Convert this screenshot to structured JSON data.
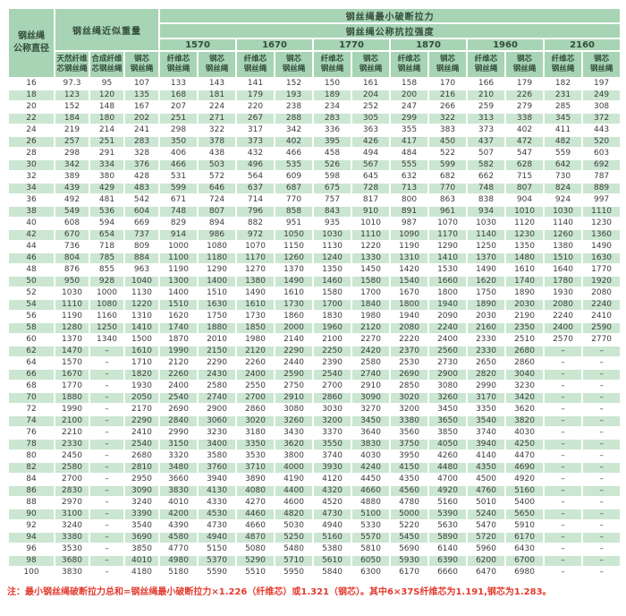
{
  "colors": {
    "header_bg": "#a7d4b4",
    "stripe_bg": "#cbe6d1",
    "note_red": "#e23b2e"
  },
  "table": {
    "header": {
      "diameter_lines": [
        "钢丝绳",
        "公称直径"
      ],
      "weight_group": "钢丝绳近似重量",
      "breaking_force": "钢丝绳最小破断拉力",
      "tensile_strength": "钢丝绳公称抗拉强度",
      "grades": [
        "1570",
        "1670",
        "1770",
        "1870",
        "1960",
        "2160"
      ],
      "weight_subheaders": [
        [
          "天然纤维",
          "芯钢丝绳"
        ],
        [
          "合成纤维",
          "芯钢丝绳"
        ],
        [
          "钢芯",
          "钢丝绳"
        ]
      ],
      "fiber_core_lines": [
        "纤维芯",
        "钢丝绳"
      ],
      "steel_core_lines": [
        "钢芯",
        "钢丝绳"
      ]
    },
    "rows": [
      [
        "16",
        "97.3",
        "95",
        "107",
        "133",
        "143",
        "141",
        "152",
        "150",
        "161",
        "158",
        "170",
        "166",
        "179",
        "182",
        "197"
      ],
      [
        "18",
        "123",
        "120",
        "135",
        "168",
        "181",
        "179",
        "193",
        "189",
        "204",
        "200",
        "216",
        "210",
        "226",
        "231",
        "249"
      ],
      [
        "20",
        "152",
        "148",
        "167",
        "207",
        "224",
        "220",
        "238",
        "234",
        "252",
        "247",
        "266",
        "259",
        "279",
        "285",
        "308"
      ],
      [
        "22",
        "184",
        "180",
        "202",
        "251",
        "271",
        "267",
        "288",
        "283",
        "305",
        "299",
        "322",
        "313",
        "338",
        "345",
        "372"
      ],
      [
        "24",
        "219",
        "214",
        "241",
        "298",
        "322",
        "317",
        "342",
        "336",
        "363",
        "355",
        "383",
        "373",
        "402",
        "411",
        "443"
      ],
      [
        "26",
        "257",
        "251",
        "283",
        "350",
        "378",
        "373",
        "402",
        "395",
        "426",
        "417",
        "450",
        "437",
        "472",
        "482",
        "520"
      ],
      [
        "28",
        "298",
        "291",
        "328",
        "406",
        "438",
        "432",
        "466",
        "458",
        "494",
        "484",
        "522",
        "507",
        "547",
        "559",
        "603"
      ],
      [
        "30",
        "342",
        "334",
        "376",
        "466",
        "503",
        "496",
        "535",
        "526",
        "567",
        "555",
        "599",
        "582",
        "628",
        "642",
        "692"
      ],
      [
        "32",
        "389",
        "380",
        "428",
        "531",
        "572",
        "564",
        "609",
        "598",
        "645",
        "632",
        "682",
        "662",
        "715",
        "730",
        "787"
      ],
      [
        "34",
        "439",
        "429",
        "483",
        "599",
        "646",
        "637",
        "687",
        "675",
        "728",
        "713",
        "770",
        "748",
        "807",
        "824",
        "889"
      ],
      [
        "36",
        "492",
        "481",
        "542",
        "671",
        "724",
        "714",
        "770",
        "757",
        "817",
        "800",
        "863",
        "838",
        "904",
        "924",
        "997"
      ],
      [
        "38",
        "549",
        "536",
        "604",
        "748",
        "807",
        "796",
        "858",
        "843",
        "910",
        "891",
        "961",
        "934",
        "1010",
        "1030",
        "1110"
      ],
      [
        "40",
        "608",
        "594",
        "669",
        "829",
        "894",
        "882",
        "951",
        "935",
        "1010",
        "987",
        "1070",
        "1030",
        "1120",
        "1140",
        "1230"
      ],
      [
        "42",
        "670",
        "654",
        "737",
        "914",
        "986",
        "972",
        "1050",
        "1030",
        "1110",
        "1090",
        "1170",
        "1140",
        "1230",
        "1260",
        "1360"
      ],
      [
        "44",
        "736",
        "718",
        "809",
        "1000",
        "1080",
        "1070",
        "1150",
        "1130",
        "1220",
        "1190",
        "1290",
        "1250",
        "1350",
        "1380",
        "1490"
      ],
      [
        "46",
        "804",
        "785",
        "884",
        "1100",
        "1180",
        "1170",
        "1260",
        "1240",
        "1330",
        "1310",
        "1410",
        "1370",
        "1480",
        "1510",
        "1630"
      ],
      [
        "48",
        "876",
        "855",
        "963",
        "1190",
        "1290",
        "1270",
        "1370",
        "1350",
        "1450",
        "1420",
        "1530",
        "1490",
        "1610",
        "1640",
        "1770"
      ],
      [
        "50",
        "950",
        "928",
        "1040",
        "1300",
        "1400",
        "1380",
        "1490",
        "1460",
        "1580",
        "1540",
        "1660",
        "1620",
        "1740",
        "1780",
        "1920"
      ],
      [
        "52",
        "1030",
        "1000",
        "1130",
        "1400",
        "1510",
        "1490",
        "1610",
        "1580",
        "1700",
        "1670",
        "1800",
        "1750",
        "1890",
        "1930",
        "2080"
      ],
      [
        "54",
        "1110",
        "1080",
        "1220",
        "1510",
        "1630",
        "1610",
        "1730",
        "1700",
        "1840",
        "1800",
        "1940",
        "1890",
        "2030",
        "2080",
        "2240"
      ],
      [
        "56",
        "1190",
        "1160",
        "1310",
        "1620",
        "1750",
        "1730",
        "1860",
        "1830",
        "1980",
        "1940",
        "2090",
        "2030",
        "2190",
        "2240",
        "2410"
      ],
      [
        "58",
        "1280",
        "1250",
        "1410",
        "1740",
        "1880",
        "1850",
        "2000",
        "1960",
        "2120",
        "2080",
        "2240",
        "2160",
        "2350",
        "2400",
        "2590"
      ],
      [
        "60",
        "1370",
        "1340",
        "1500",
        "1870",
        "2010",
        "1980",
        "2140",
        "2100",
        "2270",
        "2220",
        "2400",
        "2330",
        "2510",
        "2570",
        "2770"
      ],
      [
        "62",
        "1470",
        "–",
        "1610",
        "1990",
        "2150",
        "2120",
        "2290",
        "2250",
        "2420",
        "2370",
        "2560",
        "2330",
        "2680",
        "–",
        "–"
      ],
      [
        "64",
        "1570",
        "–",
        "1710",
        "2120",
        "2290",
        "2260",
        "2440",
        "2390",
        "2580",
        "2530",
        "2730",
        "2650",
        "2860",
        "–",
        "–"
      ],
      [
        "66",
        "1670",
        "–",
        "1820",
        "2260",
        "2430",
        "2400",
        "2590",
        "2540",
        "2740",
        "2690",
        "2900",
        "2820",
        "3040",
        "–",
        "–"
      ],
      [
        "68",
        "1770",
        "–",
        "1930",
        "2400",
        "2580",
        "2550",
        "2750",
        "2700",
        "2910",
        "2850",
        "3080",
        "2990",
        "3230",
        "–",
        "–"
      ],
      [
        "70",
        "1880",
        "–",
        "2050",
        "2540",
        "2740",
        "2700",
        "2910",
        "2860",
        "3090",
        "3020",
        "3260",
        "3170",
        "3420",
        "–",
        "–"
      ],
      [
        "72",
        "1990",
        "–",
        "2170",
        "2690",
        "2900",
        "2860",
        "3080",
        "3030",
        "3270",
        "3200",
        "3450",
        "3350",
        "3620",
        "–",
        "–"
      ],
      [
        "74",
        "2100",
        "–",
        "2290",
        "2840",
        "3060",
        "3020",
        "3260",
        "3200",
        "3450",
        "3380",
        "3650",
        "3540",
        "3820",
        "–",
        "–"
      ],
      [
        "76",
        "2210",
        "–",
        "2410",
        "2990",
        "3230",
        "3180",
        "3430",
        "3370",
        "3640",
        "3560",
        "3850",
        "3740",
        "4030",
        "–",
        "–"
      ],
      [
        "78",
        "2330",
        "–",
        "2540",
        "3150",
        "3400",
        "3350",
        "3620",
        "3550",
        "3830",
        "3750",
        "4050",
        "3940",
        "4250",
        "–",
        "–"
      ],
      [
        "80",
        "2450",
        "–",
        "2680",
        "3320",
        "3580",
        "3530",
        "3800",
        "3740",
        "4030",
        "3950",
        "4260",
        "4140",
        "4470",
        "–",
        "–"
      ],
      [
        "82",
        "2580",
        "–",
        "2810",
        "3480",
        "3760",
        "3710",
        "4000",
        "3930",
        "4240",
        "4150",
        "4480",
        "4350",
        "4690",
        "–",
        "–"
      ],
      [
        "84",
        "2700",
        "–",
        "2950",
        "3660",
        "3940",
        "3890",
        "4190",
        "4120",
        "4450",
        "4350",
        "4700",
        "4500",
        "4920",
        "–",
        "–"
      ],
      [
        "86",
        "2830",
        "–",
        "3090",
        "3830",
        "4130",
        "4080",
        "4400",
        "4320",
        "4660",
        "4560",
        "4920",
        "4760",
        "5160",
        "–",
        "–"
      ],
      [
        "88",
        "2970",
        "–",
        "3240",
        "4010",
        "4330",
        "4270",
        "4600",
        "4520",
        "4880",
        "4780",
        "5160",
        "5010",
        "5400",
        "–",
        "–"
      ],
      [
        "90",
        "3100",
        "–",
        "3390",
        "4200",
        "4530",
        "4460",
        "4820",
        "4730",
        "5100",
        "5000",
        "5390",
        "5240",
        "5650",
        "–",
        "–"
      ],
      [
        "92",
        "3240",
        "–",
        "3540",
        "4390",
        "4730",
        "4660",
        "5030",
        "4940",
        "5330",
        "5220",
        "5630",
        "5470",
        "5910",
        "–",
        "–"
      ],
      [
        "94",
        "3380",
        "–",
        "3690",
        "4580",
        "4940",
        "4870",
        "5250",
        "5160",
        "5570",
        "5450",
        "5890",
        "5720",
        "6170",
        "–",
        "–"
      ],
      [
        "96",
        "3530",
        "–",
        "3850",
        "4770",
        "5150",
        "5080",
        "5480",
        "5380",
        "5810",
        "5690",
        "6140",
        "5960",
        "6430",
        "–",
        "–"
      ],
      [
        "98",
        "3680",
        "–",
        "4010",
        "4980",
        "5370",
        "5290",
        "5710",
        "5610",
        "6050",
        "5930",
        "6390",
        "6200",
        "6700",
        "–",
        "–"
      ],
      [
        "100",
        "3830",
        "–",
        "4180",
        "5180",
        "5590",
        "5510",
        "5950",
        "5840",
        "6300",
        "6170",
        "6660",
        "6470",
        "6980",
        "–",
        "–"
      ]
    ]
  },
  "note": "注：最小钢丝绳破断拉力总和=钢丝绳最小破断拉力×1.226（纤维芯）或1.321（钢芯）。其中6×37S纤维芯为1.191,钢芯为1.283。"
}
